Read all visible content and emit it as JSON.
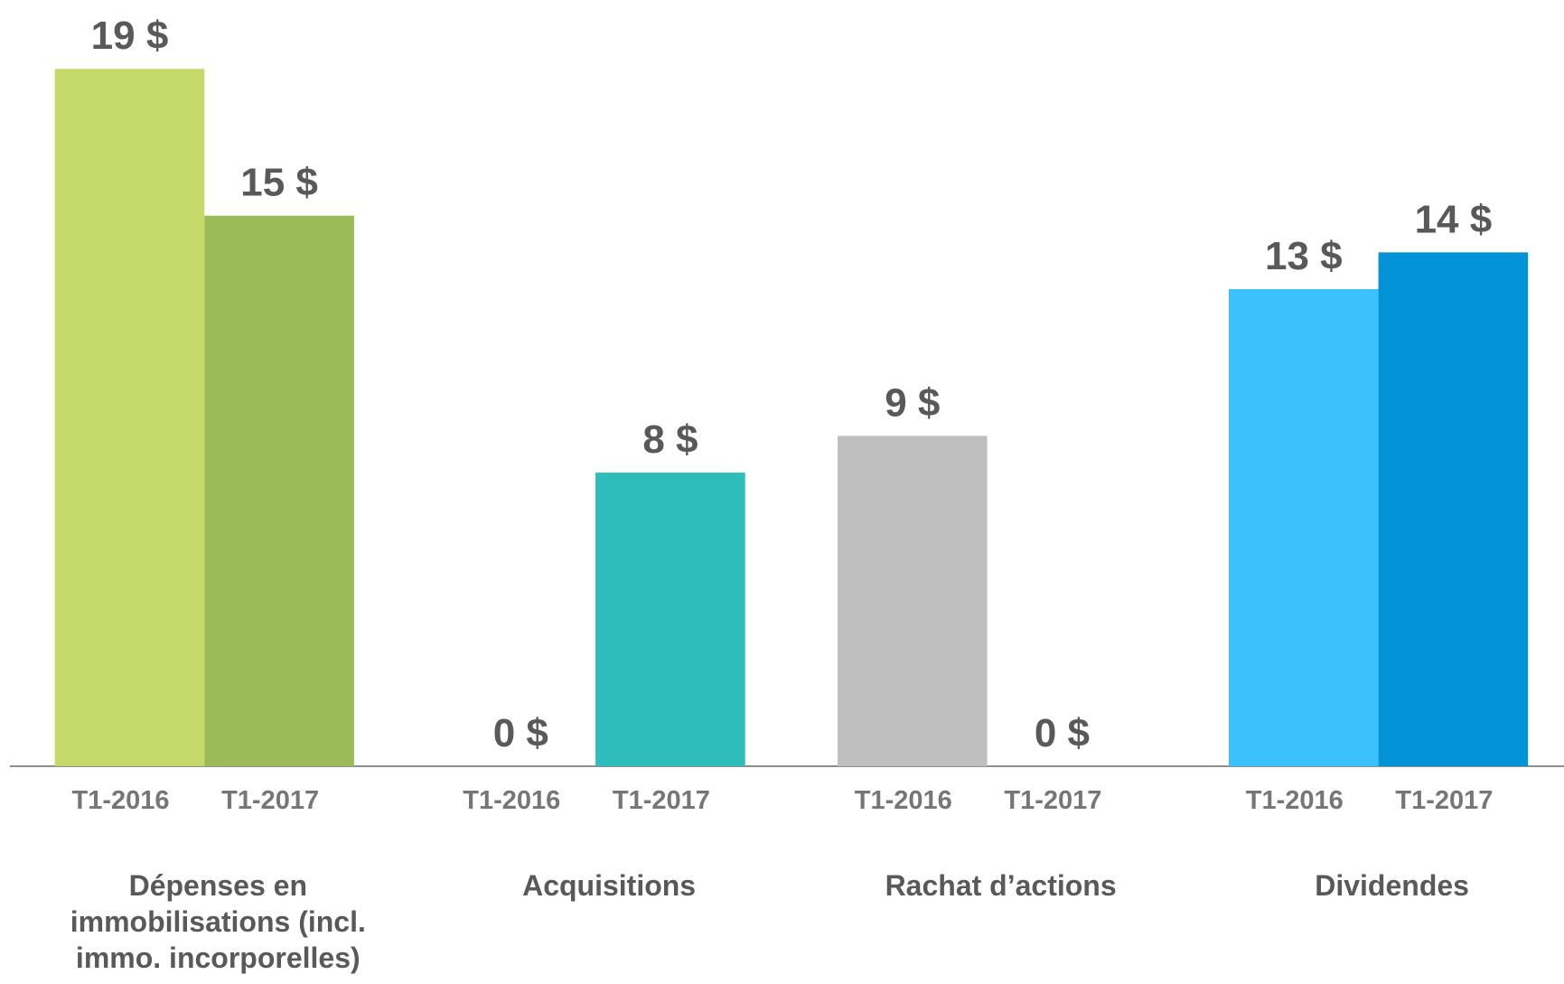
{
  "chart_data": {
    "type": "bar",
    "categories": [
      "Dépenses en immobilisations (incl. immo. incorporelles)",
      "Acquisitions",
      "Rachat d’actions",
      "Dividendes"
    ],
    "series": [
      {
        "name": "T1-2016",
        "colors": [
          "#c5d96b",
          "#2ebdbb",
          "#bfbfbf",
          "#3bc1fc"
        ],
        "values": [
          19,
          0,
          9,
          13
        ],
        "value_labels": [
          "19 $",
          "0 $",
          "9 $",
          "13 $"
        ]
      },
      {
        "name": "T1-2017",
        "colors": [
          "#9bbb59",
          "#2ebdbb",
          "#bfbfbf",
          "#0193d6"
        ],
        "values": [
          15,
          8,
          0,
          14
        ],
        "value_labels": [
          "15 $",
          "8 $",
          "0 $",
          "14 $"
        ]
      }
    ],
    "ylim": [
      0,
      21
    ]
  }
}
